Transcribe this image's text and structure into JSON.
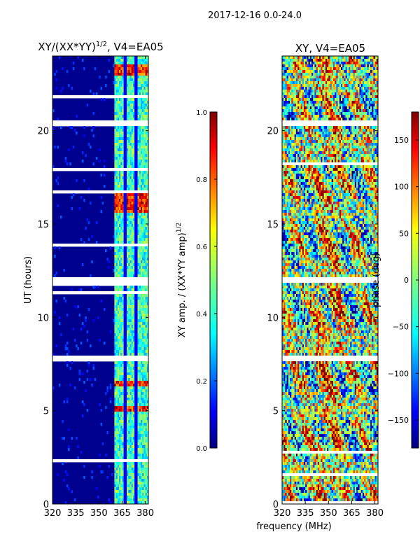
{
  "header": {
    "suptitle": "2017-12-16 0.0-24.0"
  },
  "colors": {
    "jet": [
      "#00007f",
      "#0000ff",
      "#007fff",
      "#00ffff",
      "#7fff7f",
      "#ffff00",
      "#ff7f00",
      "#ff0000",
      "#7f0000"
    ],
    "background_blue": "#00008f",
    "gap": "#ffffff"
  },
  "chart_data": [
    {
      "type": "heatmap",
      "title_main": "XY/(XX*YY)",
      "title_sup": "1/2",
      "title_rest": ", V4=EA05",
      "xlabel": "",
      "ylabel": "UT (hours)",
      "xlim": [
        320,
        382
      ],
      "ylim": [
        0,
        24
      ],
      "xticks": [
        320,
        335,
        350,
        365,
        380
      ],
      "yticks": [
        0,
        5,
        10,
        15,
        20
      ],
      "signal_band_mhz": [
        360,
        382
      ],
      "high_rows_hours": [
        [
          15.6,
          16.6
        ],
        [
          6.3,
          6.6
        ],
        [
          5.0,
          5.2
        ],
        [
          23.0,
          23.6
        ]
      ],
      "gap_rows_hours": [
        [
          11.8,
          12.2
        ],
        [
          7.7,
          7.9
        ],
        [
          17.9,
          18.0
        ],
        [
          20.3,
          20.5
        ]
      ],
      "colorbar": {
        "label_main": "XY amp. / (XX*YY amp)",
        "label_sup": "1/2",
        "range": [
          0.0,
          1.0
        ],
        "ticks": [
          "0.0",
          "0.2",
          "0.4",
          "0.6",
          "0.8",
          "1.0"
        ]
      }
    },
    {
      "type": "heatmap",
      "title": "XY, V4=EA05",
      "xlabel": "frequency (MHz)",
      "ylabel": "",
      "xlim": [
        320,
        382
      ],
      "ylim": [
        0,
        24
      ],
      "xticks": [
        320,
        335,
        350,
        365,
        380
      ],
      "yticks": [
        0,
        5,
        10,
        15,
        20
      ],
      "gap_rows_hours": [
        [
          11.8,
          12.2
        ],
        [
          7.7,
          7.9
        ],
        [
          20.3,
          20.5
        ]
      ],
      "colorbar": {
        "label": "phase (deg)",
        "range": [
          -180,
          180
        ],
        "ticks": [
          "−150",
          "−100",
          "−50",
          "0",
          "50",
          "100",
          "150"
        ],
        "tick_values": [
          -150,
          -100,
          -50,
          0,
          50,
          100,
          150
        ]
      }
    }
  ]
}
